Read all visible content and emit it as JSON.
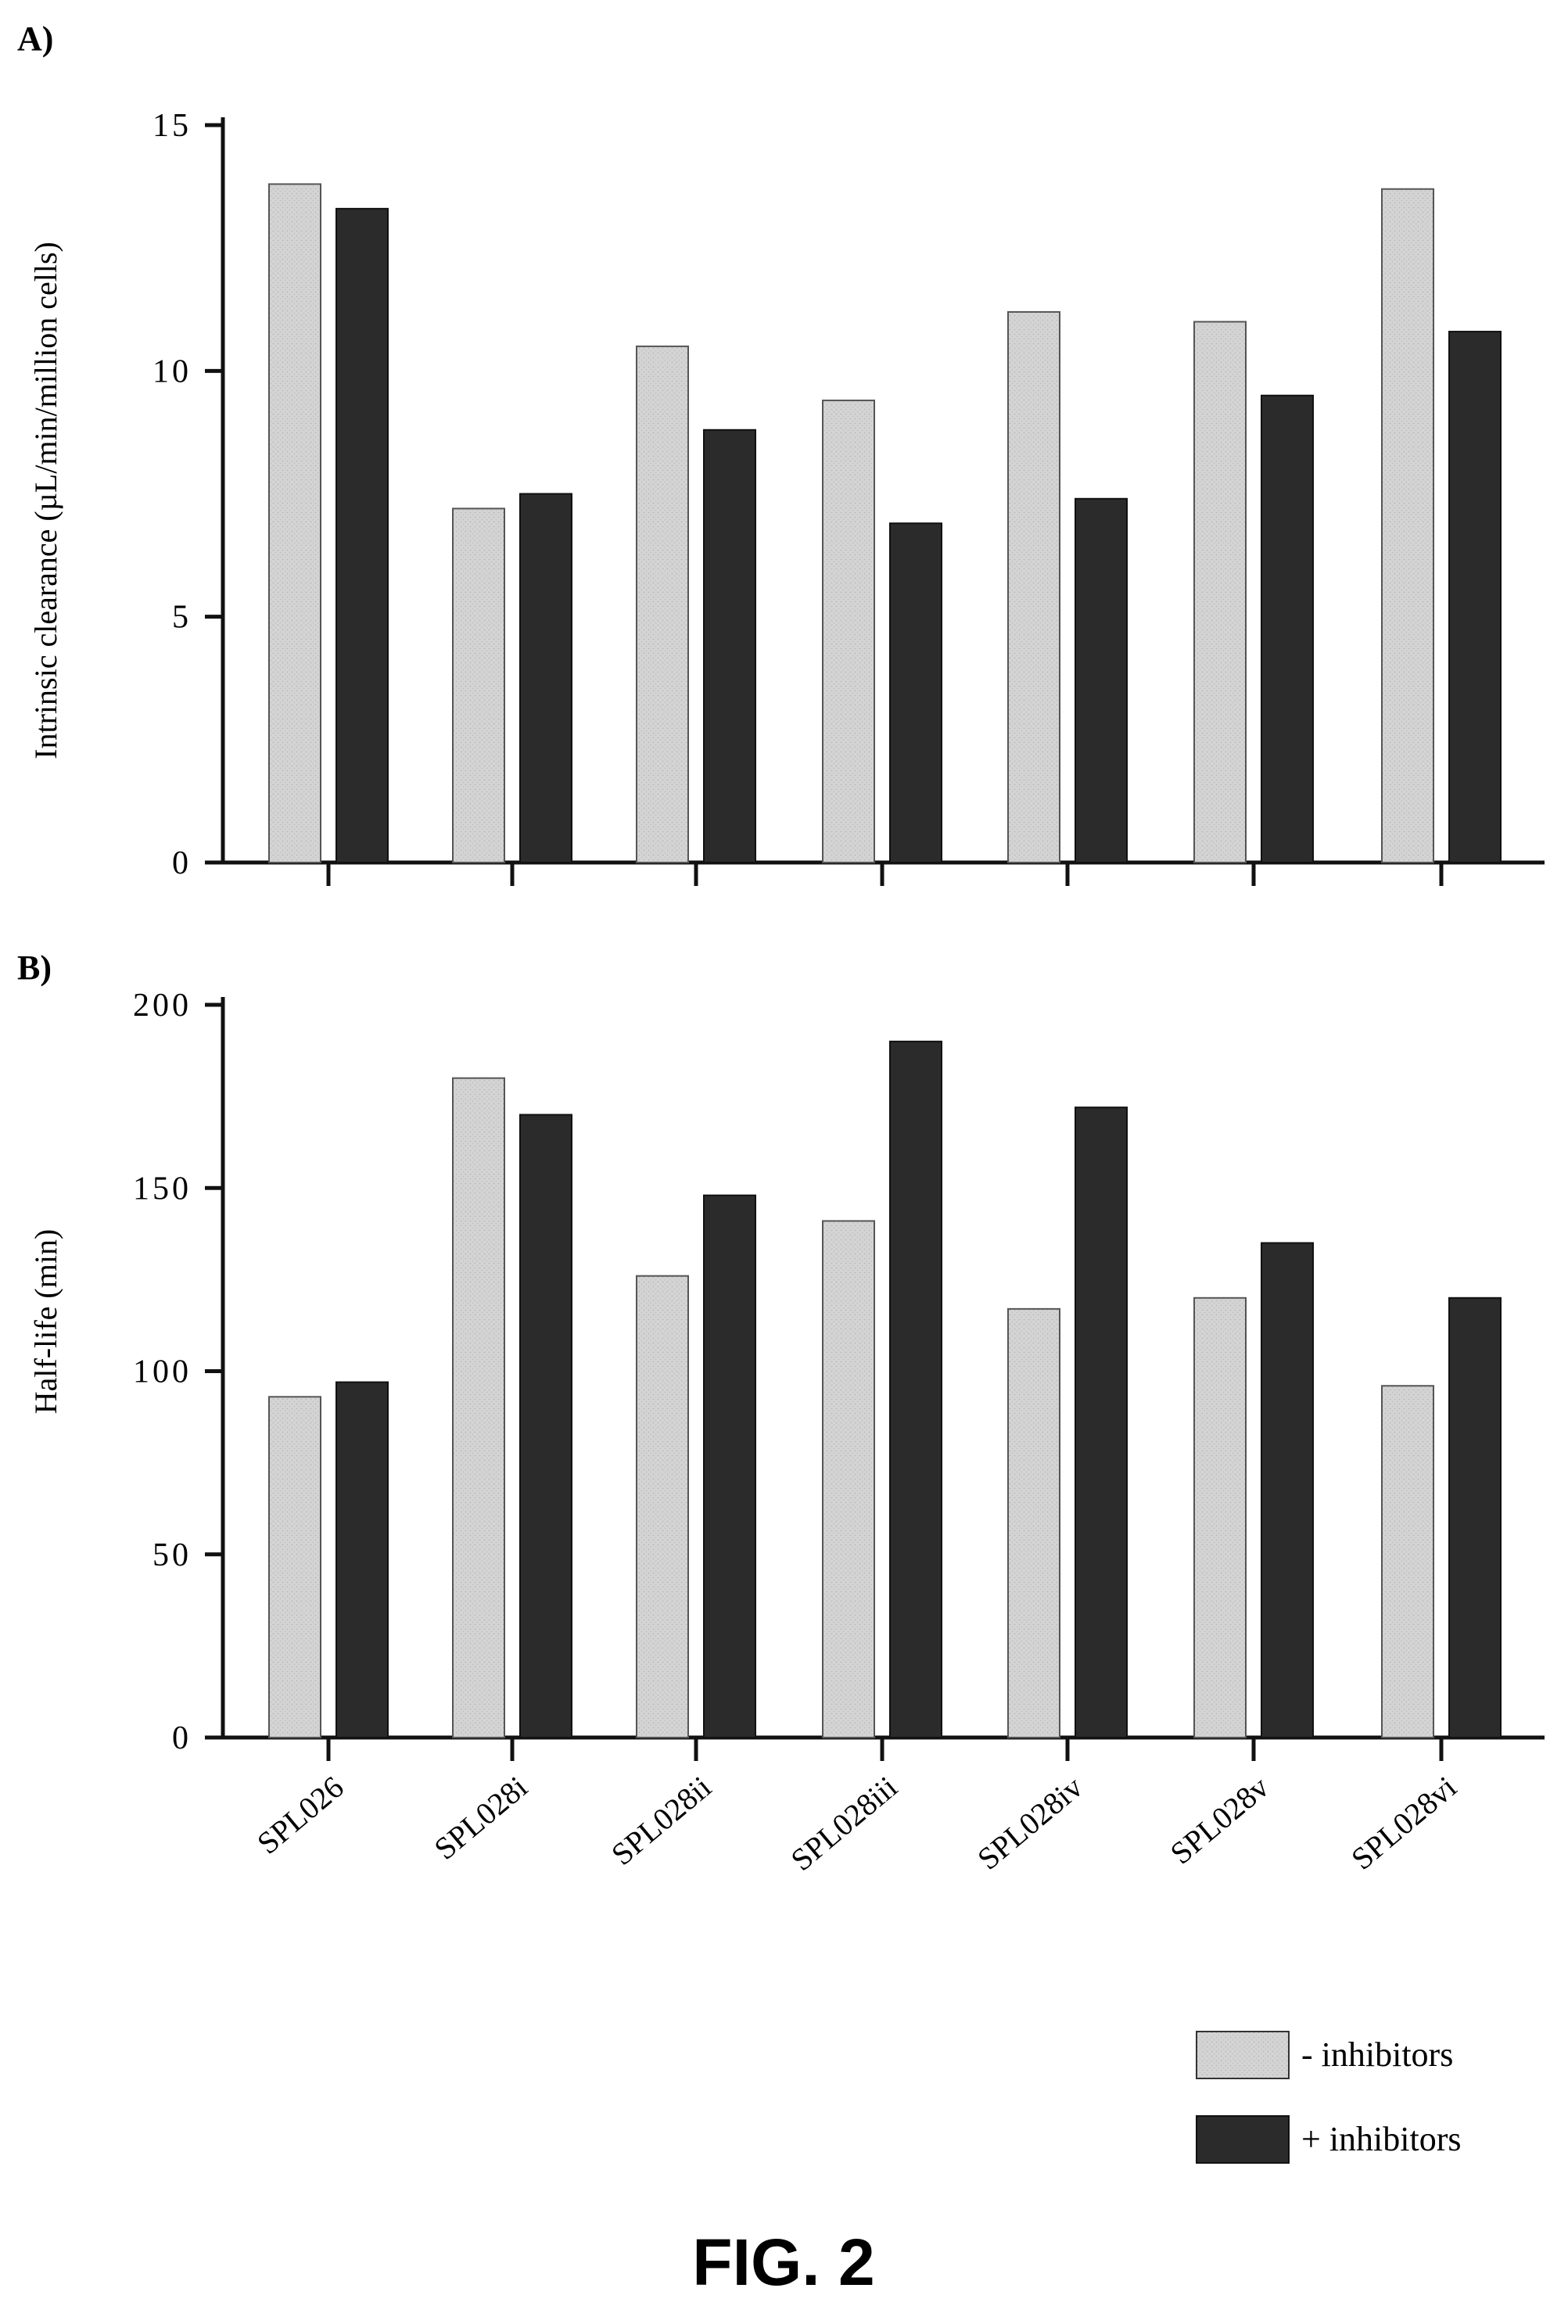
{
  "chart_data": [
    {
      "type": "bar",
      "panel_label": "A)",
      "ylabel": "Intrinsic clearance (µL/min/million cells)",
      "xlabel": "",
      "ylim": [
        0,
        15
      ],
      "y_ticks": [
        0,
        5,
        10,
        15
      ],
      "categories": [
        "SPL026",
        "SPL028i",
        "SPL028ii",
        "SPL028iii",
        "SPL028iv",
        "SPL028v",
        "SPL028vi"
      ],
      "series": [
        {
          "name": "- inhibitors",
          "color": "#d2d2d2",
          "values": [
            13.8,
            7.2,
            10.5,
            9.4,
            11.2,
            11.0,
            13.7
          ]
        },
        {
          "name": "+ inhibitors",
          "color": "#2b2b2b",
          "values": [
            13.3,
            7.5,
            8.8,
            6.9,
            7.4,
            9.5,
            10.8
          ]
        }
      ],
      "grid": false
    },
    {
      "type": "bar",
      "panel_label": "B)",
      "ylabel": "Half-life (min)",
      "xlabel": "",
      "ylim": [
        0,
        200
      ],
      "y_ticks": [
        0,
        50,
        100,
        150,
        200
      ],
      "categories": [
        "SPL026",
        "SPL028i",
        "SPL028ii",
        "SPL028iii",
        "SPL028iv",
        "SPL028v",
        "SPL028vi"
      ],
      "series": [
        {
          "name": "- inhibitors",
          "color": "#d2d2d2",
          "values": [
            93,
            180,
            126,
            141,
            117,
            120,
            96
          ]
        },
        {
          "name": "+ inhibitors",
          "color": "#2b2b2b",
          "values": [
            97,
            170,
            148,
            190,
            172,
            135,
            120
          ]
        }
      ],
      "grid": false
    }
  ],
  "legend": {
    "placement": "bottom-right",
    "items": [
      {
        "label": "- inhibitors",
        "color": "#d2d2d2"
      },
      {
        "label": "+ inhibitors",
        "color": "#2b2b2b"
      }
    ]
  },
  "figure_caption": "FIG. 2"
}
